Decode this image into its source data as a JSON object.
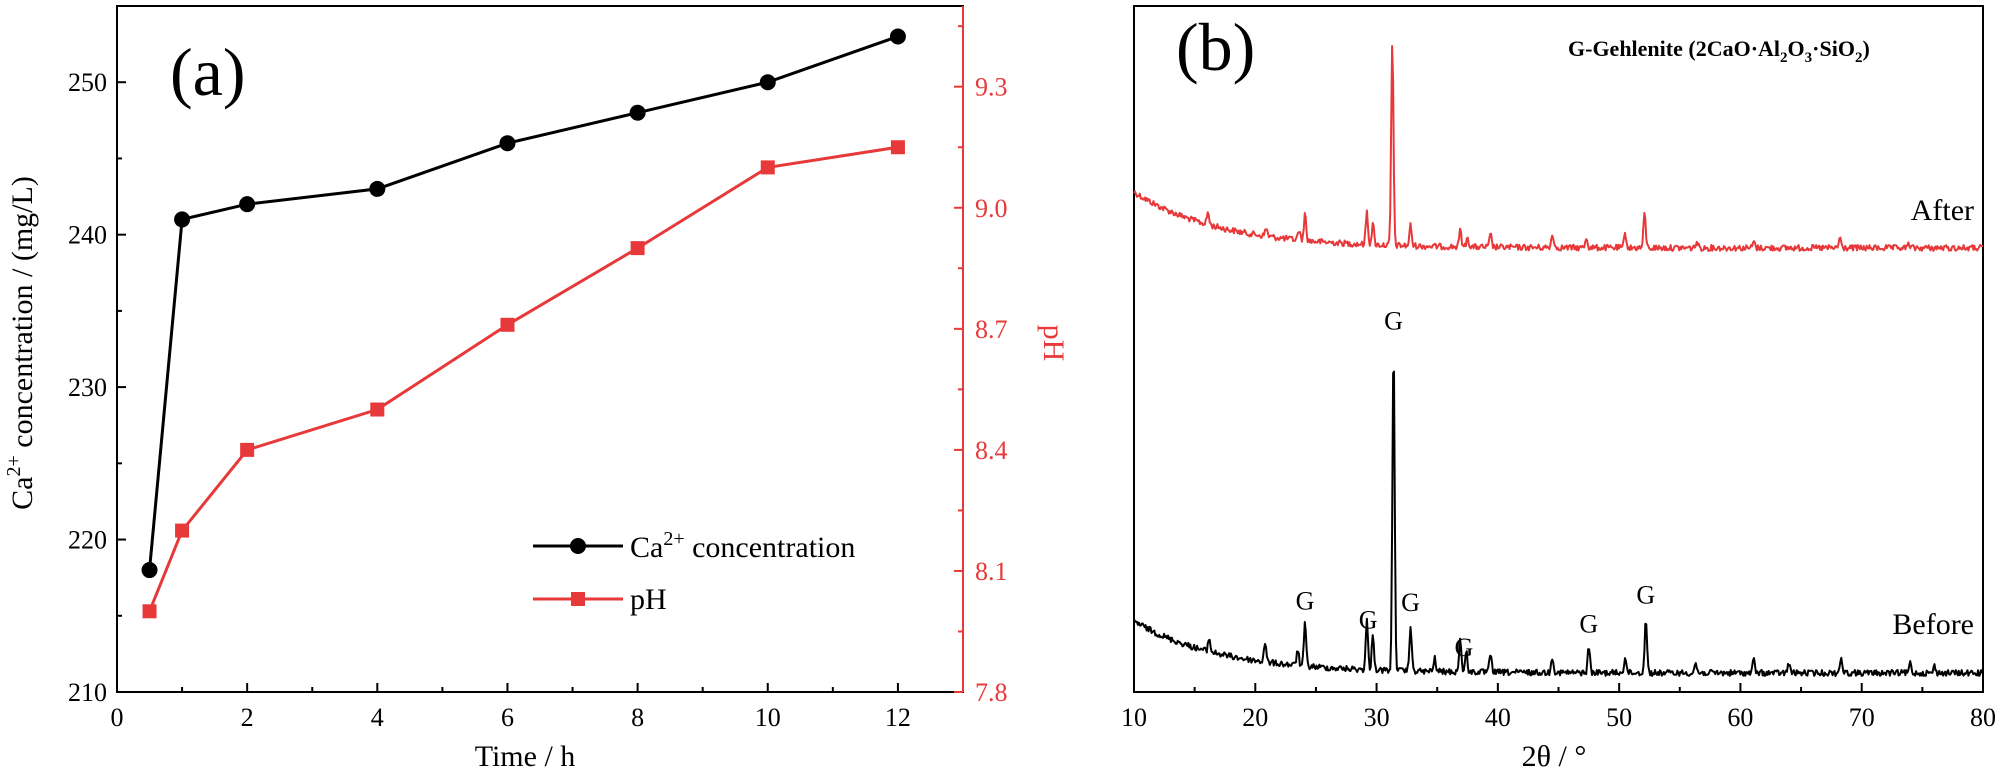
{
  "chart_data": [
    {
      "type": "line",
      "panel_label": "(a)",
      "xlabel": "Time / h",
      "ylabel_left": {
        "main": "Ca",
        "sup": "2+",
        "rest": " concentration / (mg/L)"
      },
      "ylabel_right": "pH",
      "x": [
        0.5,
        1,
        2,
        4,
        6,
        8,
        10,
        12
      ],
      "xlim": [
        0,
        13
      ],
      "ylim_left": [
        210,
        255
      ],
      "ylim_right": [
        7.8,
        9.5
      ],
      "x_ticks": [
        0,
        2,
        4,
        6,
        8,
        10,
        12
      ],
      "y_ticks_left": [
        210,
        220,
        230,
        240,
        250
      ],
      "y_ticks_right": [
        7.8,
        8.1,
        8.4,
        8.7,
        9.0,
        9.3
      ],
      "y_tick_labels_right": [
        "7.8",
        "8.1",
        "8.4",
        "8.7",
        "9.0",
        "9.3"
      ],
      "series": [
        {
          "name": "Ca2+ concentration",
          "legend_main": "Ca",
          "legend_sup": "2+",
          "legend_rest": " concentration",
          "axis": "left",
          "color": "#000000",
          "marker": "circle",
          "values": [
            218,
            241,
            242,
            243,
            246,
            248,
            250,
            253
          ]
        },
        {
          "name": "pH",
          "legend_main": "pH",
          "legend_sup": "",
          "legend_rest": "",
          "axis": "right",
          "color": "#e8393a",
          "marker": "square",
          "values": [
            8.0,
            8.2,
            8.4,
            8.5,
            8.71,
            8.9,
            9.1,
            9.15
          ]
        }
      ],
      "legend_position": "bottom-center"
    },
    {
      "type": "line",
      "panel_label": "(b)",
      "xlabel": "2θ / °",
      "xlim": [
        10,
        80
      ],
      "x_ticks": [
        10,
        20,
        30,
        40,
        50,
        60,
        70,
        80
      ],
      "legend_title": {
        "prefix": "G-Gehlenite (2CaO·Al",
        "s1": "2",
        "mid1": "O",
        "s2": "3",
        "mid2": "·SiO",
        "s3": "2",
        "suffix": ")"
      },
      "y_axis": "arbitrary intensity, no ticks",
      "series": [
        {
          "name": "After",
          "color": "#e8393a",
          "peaks": [
            {
              "x": 16.1,
              "h": 0.06
            },
            {
              "x": 20.9,
              "h": 0.04
            },
            {
              "x": 23.6,
              "h": 0.05
            },
            {
              "x": 24.1,
              "h": 0.13
            },
            {
              "x": 29.2,
              "h": 0.16
            },
            {
              "x": 29.7,
              "h": 0.1
            },
            {
              "x": 31.3,
              "h": 1.0
            },
            {
              "x": 32.8,
              "h": 0.1
            },
            {
              "x": 36.9,
              "h": 0.08
            },
            {
              "x": 37.5,
              "h": 0.05
            },
            {
              "x": 39.4,
              "h": 0.06
            },
            {
              "x": 44.5,
              "h": 0.07
            },
            {
              "x": 47.3,
              "h": 0.05
            },
            {
              "x": 50.5,
              "h": 0.07
            },
            {
              "x": 52.1,
              "h": 0.17
            },
            {
              "x": 56.4,
              "h": 0.03
            },
            {
              "x": 61.1,
              "h": 0.03
            },
            {
              "x": 68.2,
              "h": 0.05
            },
            {
              "x": 73.9,
              "h": 0.02
            }
          ]
        },
        {
          "name": "Before",
          "color": "#000000",
          "peaks": [
            {
              "x": 16.2,
              "h": 0.04
            },
            {
              "x": 20.8,
              "h": 0.06
            },
            {
              "x": 23.5,
              "h": 0.05
            },
            {
              "x": 24.1,
              "h": 0.13
            },
            {
              "x": 29.2,
              "h": 0.15
            },
            {
              "x": 29.7,
              "h": 0.11
            },
            {
              "x": 31.4,
              "h": 1.0
            },
            {
              "x": 32.8,
              "h": 0.14
            },
            {
              "x": 34.8,
              "h": 0.04
            },
            {
              "x": 36.9,
              "h": 0.1
            },
            {
              "x": 37.4,
              "h": 0.06
            },
            {
              "x": 39.4,
              "h": 0.06
            },
            {
              "x": 44.5,
              "h": 0.05
            },
            {
              "x": 47.5,
              "h": 0.08
            },
            {
              "x": 50.5,
              "h": 0.05
            },
            {
              "x": 52.2,
              "h": 0.17
            },
            {
              "x": 56.3,
              "h": 0.03
            },
            {
              "x": 61.1,
              "h": 0.04
            },
            {
              "x": 64.0,
              "h": 0.03
            },
            {
              "x": 68.3,
              "h": 0.05
            },
            {
              "x": 74.0,
              "h": 0.03
            },
            {
              "x": 76.0,
              "h": 0.02
            }
          ]
        }
      ],
      "peak_annotations": [
        {
          "label": "G",
          "x": 24.1
        },
        {
          "label": "G",
          "x": 29.3
        },
        {
          "label": "G",
          "x": 31.4
        },
        {
          "label": "G",
          "x": 32.8
        },
        {
          "label": "G",
          "x": 37.2
        },
        {
          "label": "G",
          "x": 47.5
        },
        {
          "label": "G",
          "x": 52.2
        }
      ]
    }
  ]
}
